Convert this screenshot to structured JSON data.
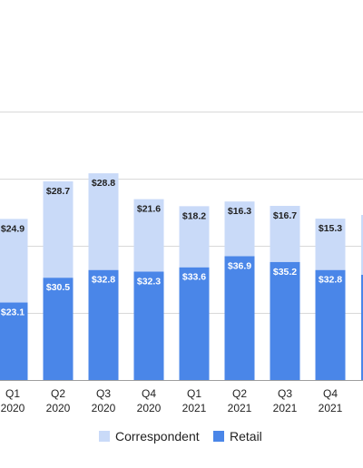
{
  "chart_data": {
    "type": "bar",
    "stacked": true,
    "categories": [
      [
        "Q1",
        "2020"
      ],
      [
        "Q2",
        "2020"
      ],
      [
        "Q3",
        "2020"
      ],
      [
        "Q4",
        "2020"
      ],
      [
        "Q1",
        "2021"
      ],
      [
        "Q2",
        "2021"
      ],
      [
        "Q3",
        "2021"
      ],
      [
        "Q4",
        "2021"
      ]
    ],
    "series": [
      {
        "name": "Retail",
        "color": "#4a86e8",
        "label_color": "#ffffff",
        "values": [
          23.1,
          30.5,
          32.8,
          32.3,
          33.6,
          36.9,
          35.2,
          32.8
        ],
        "labels": [
          "$23.1",
          "$30.5",
          "$32.8",
          "$32.3",
          "$33.6",
          "$36.9",
          "$35.2",
          "$32.8"
        ]
      },
      {
        "name": "Correspondent",
        "color": "#c9daf8",
        "label_color": "#222222",
        "values": [
          24.9,
          28.7,
          28.8,
          21.6,
          18.2,
          16.3,
          16.7,
          15.3
        ],
        "labels": [
          "$24.9",
          "$28.7",
          "$28.8",
          "$21.6",
          "$18.2",
          "$16.3",
          "$16.7",
          "$15.3"
        ]
      }
    ],
    "ylim": [
      0,
      80
    ],
    "grid": true,
    "legend": {
      "position": "bottom",
      "order": [
        "Correspondent",
        "Retail"
      ]
    },
    "title": "",
    "xlabel": "",
    "ylabel": ""
  }
}
